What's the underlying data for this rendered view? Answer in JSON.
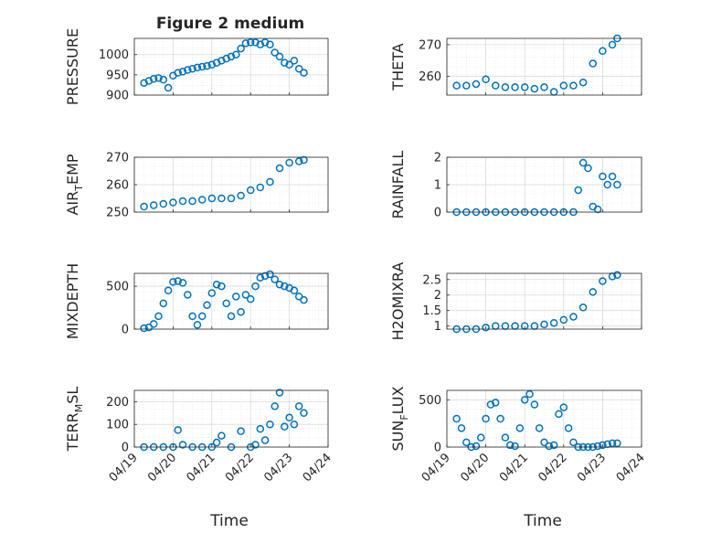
{
  "figure": {
    "title": "Figure 2 medium",
    "xlabel": "Time"
  },
  "colors": {
    "marker": "#0072BD",
    "axis": "#262626",
    "grid": "#d9d9d9"
  },
  "x_ticks": [
    "04/19",
    "04/20",
    "04/21",
    "04/22",
    "04/23",
    "04/24"
  ],
  "chart_data": [
    {
      "type": "scatter",
      "ylabel": "PRESSURE",
      "ylim": [
        900,
        1040
      ],
      "yticks": [
        "900",
        "950",
        "1000"
      ],
      "ytick_values": [
        900,
        950,
        1000
      ],
      "x": [
        "04/19 06:00",
        "04/19 09:00",
        "04/19 12:00",
        "04/19 15:00",
        "04/19 18:00",
        "04/19 21:00",
        "04/20 00:00",
        "04/20 03:00",
        "04/20 06:00",
        "04/20 09:00",
        "04/20 12:00",
        "04/20 15:00",
        "04/20 18:00",
        "04/20 21:00",
        "04/21 00:00",
        "04/21 03:00",
        "04/21 06:00",
        "04/21 09:00",
        "04/21 12:00",
        "04/21 15:00",
        "04/21 18:00",
        "04/21 21:00",
        "04/22 00:00",
        "04/22 03:00",
        "04/22 06:00",
        "04/22 09:00",
        "04/22 12:00",
        "04/22 15:00",
        "04/22 18:00",
        "04/22 21:00",
        "04/23 00:00",
        "04/23 03:00",
        "04/23 06:00",
        "04/23 09:00"
      ],
      "y": [
        930,
        935,
        940,
        942,
        938,
        918,
        948,
        955,
        958,
        962,
        965,
        968,
        970,
        972,
        975,
        980,
        985,
        990,
        995,
        1000,
        1015,
        1028,
        1030,
        1030,
        1025,
        1030,
        1025,
        1005,
        995,
        980,
        975,
        985,
        965,
        955
      ]
    },
    {
      "type": "scatter",
      "ylabel": "THETA",
      "ylim": [
        254,
        272
      ],
      "yticks": [
        "260",
        "270"
      ],
      "ytick_values": [
        260,
        270
      ],
      "x": [
        "04/19 06:00",
        "04/19 12:00",
        "04/19 18:00",
        "04/20 00:00",
        "04/20 06:00",
        "04/20 12:00",
        "04/20 18:00",
        "04/21 00:00",
        "04/21 06:00",
        "04/21 12:00",
        "04/21 18:00",
        "04/22 00:00",
        "04/22 06:00",
        "04/22 12:00",
        "04/22 18:00",
        "04/23 00:00",
        "04/23 06:00",
        "04/23 09:00"
      ],
      "y": [
        257,
        257,
        257.5,
        259,
        257,
        256.5,
        256.5,
        256.5,
        256,
        256.5,
        255,
        257,
        257,
        258,
        264,
        268,
        270,
        272
      ]
    },
    {
      "type": "scatter",
      "ylabel": "AIR_TEMP",
      "ylim": [
        250,
        270
      ],
      "yticks": [
        "250",
        "260",
        "270"
      ],
      "ytick_values": [
        250,
        260,
        270
      ],
      "x": [
        "04/19 06:00",
        "04/19 12:00",
        "04/19 18:00",
        "04/20 00:00",
        "04/20 06:00",
        "04/20 12:00",
        "04/20 18:00",
        "04/21 00:00",
        "04/21 06:00",
        "04/21 12:00",
        "04/21 18:00",
        "04/22 00:00",
        "04/22 06:00",
        "04/22 12:00",
        "04/22 18:00",
        "04/23 00:00",
        "04/23 06:00",
        "04/23 09:00"
      ],
      "y": [
        252,
        252.5,
        253,
        253.5,
        254,
        254,
        254.5,
        255,
        255,
        255,
        256,
        258,
        259,
        261,
        266,
        268,
        268.5,
        269
      ]
    },
    {
      "type": "scatter",
      "ylabel": "RAINFALL",
      "ylim": [
        0,
        2
      ],
      "yticks": [
        "0",
        "1",
        "2"
      ],
      "ytick_values": [
        0,
        1,
        2
      ],
      "x": [
        "04/19 06:00",
        "04/19 12:00",
        "04/19 18:00",
        "04/20 00:00",
        "04/20 06:00",
        "04/20 12:00",
        "04/20 18:00",
        "04/21 00:00",
        "04/21 06:00",
        "04/21 12:00",
        "04/21 18:00",
        "04/22 00:00",
        "04/22 06:00",
        "04/22 09:00",
        "04/22 12:00",
        "04/22 15:00",
        "04/22 18:00",
        "04/22 21:00",
        "04/23 00:00",
        "04/23 03:00",
        "04/23 06:00",
        "04/23 09:00"
      ],
      "y": [
        0,
        0,
        0,
        0,
        0,
        0,
        0,
        0,
        0,
        0,
        0,
        0,
        0,
        0.8,
        1.8,
        1.6,
        0.2,
        0.1,
        1.3,
        1,
        1.3,
        1
      ]
    },
    {
      "type": "scatter",
      "ylabel": "MIXDEPTH",
      "ylim": [
        0,
        650
      ],
      "yticks": [
        "0",
        "500"
      ],
      "ytick_values": [
        0,
        500
      ],
      "x": [
        "04/19 06:00",
        "04/19 09:00",
        "04/19 12:00",
        "04/19 15:00",
        "04/19 18:00",
        "04/19 21:00",
        "04/20 00:00",
        "04/20 03:00",
        "04/20 06:00",
        "04/20 09:00",
        "04/20 12:00",
        "04/20 15:00",
        "04/20 18:00",
        "04/20 21:00",
        "04/21 00:00",
        "04/21 03:00",
        "04/21 06:00",
        "04/21 09:00",
        "04/21 12:00",
        "04/21 15:00",
        "04/21 18:00",
        "04/21 21:00",
        "04/22 00:00",
        "04/22 03:00",
        "04/22 06:00",
        "04/22 09:00",
        "04/22 12:00",
        "04/22 15:00",
        "04/22 18:00",
        "04/22 21:00",
        "04/23 00:00",
        "04/23 03:00",
        "04/23 06:00",
        "04/23 09:00"
      ],
      "y": [
        10,
        20,
        60,
        150,
        300,
        450,
        550,
        560,
        540,
        400,
        150,
        50,
        150,
        280,
        420,
        520,
        500,
        300,
        150,
        380,
        200,
        400,
        350,
        500,
        600,
        620,
        640,
        580,
        520,
        500,
        480,
        450,
        380,
        340
      ]
    },
    {
      "type": "scatter",
      "ylabel": "H2OMIXRA",
      "ylim": [
        0.9,
        2.7
      ],
      "yticks": [
        "1",
        "1.5",
        "2",
        "2.5"
      ],
      "ytick_values": [
        1,
        1.5,
        2,
        2.5
      ],
      "x": [
        "04/19 06:00",
        "04/19 12:00",
        "04/19 18:00",
        "04/20 00:00",
        "04/20 06:00",
        "04/20 12:00",
        "04/20 18:00",
        "04/21 00:00",
        "04/21 06:00",
        "04/21 12:00",
        "04/21 18:00",
        "04/22 00:00",
        "04/22 06:00",
        "04/22 12:00",
        "04/22 18:00",
        "04/23 00:00",
        "04/23 06:00",
        "04/23 09:00"
      ],
      "y": [
        0.9,
        0.9,
        0.9,
        0.95,
        1,
        1,
        1,
        1,
        1,
        1.05,
        1.1,
        1.2,
        1.3,
        1.6,
        2.1,
        2.45,
        2.6,
        2.65
      ]
    },
    {
      "type": "scatter",
      "ylabel": "TERR_MSL",
      "ylim": [
        0,
        250
      ],
      "yticks": [
        "0",
        "100",
        "200"
      ],
      "ytick_values": [
        0,
        100,
        200
      ],
      "x": [
        "04/19 06:00",
        "04/19 12:00",
        "04/19 18:00",
        "04/20 00:00",
        "04/20 03:00",
        "04/20 06:00",
        "04/20 12:00",
        "04/20 18:00",
        "04/21 00:00",
        "04/21 03:00",
        "04/21 06:00",
        "04/21 12:00",
        "04/21 18:00",
        "04/22 00:00",
        "04/22 03:00",
        "04/22 06:00",
        "04/22 09:00",
        "04/22 12:00",
        "04/22 15:00",
        "04/22 18:00",
        "04/22 21:00",
        "04/23 00:00",
        "04/23 03:00",
        "04/23 06:00",
        "04/23 09:00"
      ],
      "y": [
        0,
        0,
        0,
        0,
        75,
        10,
        0,
        0,
        0,
        20,
        50,
        0,
        70,
        0,
        10,
        80,
        30,
        100,
        180,
        240,
        90,
        130,
        100,
        180,
        150
      ]
    },
    {
      "type": "scatter",
      "ylabel": "SUN_FLUX",
      "ylim": [
        0,
        600
      ],
      "yticks": [
        "0",
        "500"
      ],
      "ytick_values": [
        0,
        500
      ],
      "x": [
        "04/19 06:00",
        "04/19 09:00",
        "04/19 12:00",
        "04/19 15:00",
        "04/19 18:00",
        "04/19 21:00",
        "04/20 00:00",
        "04/20 03:00",
        "04/20 06:00",
        "04/20 09:00",
        "04/20 12:00",
        "04/20 15:00",
        "04/20 18:00",
        "04/20 21:00",
        "04/21 00:00",
        "04/21 03:00",
        "04/21 06:00",
        "04/21 09:00",
        "04/21 12:00",
        "04/21 15:00",
        "04/21 18:00",
        "04/21 21:00",
        "04/22 00:00",
        "04/22 03:00",
        "04/22 06:00",
        "04/22 09:00",
        "04/22 12:00",
        "04/22 15:00",
        "04/22 18:00",
        "04/22 21:00",
        "04/23 00:00",
        "04/23 03:00",
        "04/23 06:00",
        "04/23 09:00"
      ],
      "y": [
        300,
        200,
        50,
        0,
        10,
        100,
        300,
        450,
        470,
        300,
        100,
        20,
        10,
        200,
        500,
        560,
        450,
        200,
        50,
        10,
        20,
        350,
        420,
        200,
        50,
        0,
        0,
        0,
        0,
        10,
        20,
        30,
        40,
        40
      ]
    }
  ]
}
